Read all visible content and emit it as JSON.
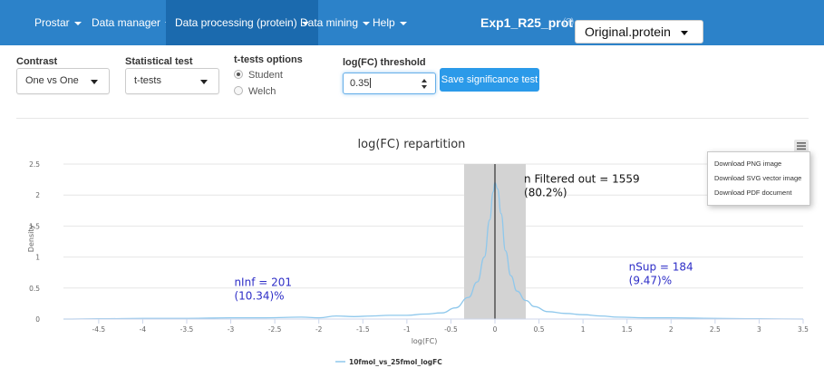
{
  "navbar": {
    "items": [
      {
        "label": "Prostar",
        "has_caret": true
      },
      {
        "label": "Data manager",
        "has_caret": true
      },
      {
        "label": "Data processing (protein)",
        "has_caret": true,
        "active": true
      },
      {
        "label": "Data mining",
        "has_caret": true
      },
      {
        "label": "Help",
        "has_caret": true
      }
    ],
    "experiment_title": "Exp1_R25_prot",
    "help_icon": "question-mark-icon",
    "help_glyph": "(?)",
    "dataset_select": {
      "value": "Original.protein"
    },
    "colors": {
      "background": "#2c82c9",
      "active": "#1b6aae"
    }
  },
  "controls": {
    "contrast": {
      "label": "Contrast",
      "value": "One vs One"
    },
    "statistical_test": {
      "label": "Statistical test",
      "value": "t-tests"
    },
    "ttest_options": {
      "label": "t-tests options",
      "options": [
        {
          "label": "Student",
          "checked": true
        },
        {
          "label": "Welch",
          "checked": false
        }
      ]
    },
    "logfc_threshold": {
      "label": "log(FC) threshold",
      "value": "0.35"
    },
    "save_button": {
      "label": "Save significance test",
      "color": "#2b9ae9"
    }
  },
  "chart_data": {
    "type": "area",
    "title": "log(FC) repartition",
    "xlabel": "log(FC)",
    "ylabel": "Density",
    "xlim": [
      -4.9,
      3.5
    ],
    "ylim": [
      0,
      2.5
    ],
    "x_ticks": [
      -4.5,
      -4,
      -3.5,
      -3,
      -2.5,
      -2,
      -1.5,
      -1,
      -0.5,
      0,
      0.5,
      1,
      1.5,
      2,
      2.5,
      3,
      3.5
    ],
    "y_ticks": [
      0,
      0.5,
      1,
      1.5,
      2,
      2.5
    ],
    "grid": "horizontal",
    "legend_position": "bottom-center",
    "threshold": 0.35,
    "threshold_band": {
      "from": -0.35,
      "to": 0.35,
      "color": "#d3d3d3"
    },
    "zero_line_color": "#333333",
    "series": [
      {
        "name": "10fmol_vs_25fmol_logFC",
        "color": "#8fc8ec",
        "points": [
          [
            -4.9,
            0.0
          ],
          [
            -4.5,
            0.005
          ],
          [
            -4.0,
            0.01
          ],
          [
            -3.5,
            0.01
          ],
          [
            -3.0,
            0.02
          ],
          [
            -2.6,
            0.02
          ],
          [
            -2.2,
            0.03
          ],
          [
            -2.0,
            0.02
          ],
          [
            -1.8,
            0.05
          ],
          [
            -1.6,
            0.04
          ],
          [
            -1.4,
            0.05
          ],
          [
            -1.2,
            0.06
          ],
          [
            -1.0,
            0.06
          ],
          [
            -0.8,
            0.08
          ],
          [
            -0.6,
            0.1
          ],
          [
            -0.45,
            0.18
          ],
          [
            -0.3,
            0.35
          ],
          [
            -0.2,
            0.6
          ],
          [
            -0.12,
            1.0
          ],
          [
            -0.06,
            1.6
          ],
          [
            -0.02,
            2.05
          ],
          [
            0.0,
            2.2
          ],
          [
            0.03,
            2.1
          ],
          [
            0.07,
            1.7
          ],
          [
            0.12,
            1.1
          ],
          [
            0.18,
            0.7
          ],
          [
            0.25,
            0.45
          ],
          [
            0.35,
            0.3
          ],
          [
            0.45,
            0.2
          ],
          [
            0.6,
            0.12
          ],
          [
            0.8,
            0.09
          ],
          [
            1.0,
            0.07
          ],
          [
            1.2,
            0.05
          ],
          [
            1.4,
            0.03
          ],
          [
            1.7,
            0.02
          ],
          [
            2.0,
            0.02
          ],
          [
            2.5,
            0.01
          ],
          [
            3.0,
            0.005
          ],
          [
            3.5,
            0.0
          ]
        ]
      }
    ],
    "annotations": [
      {
        "text_line1": "n Filtered out = 1559",
        "text_line2": "(80.2%)",
        "x": 0.33,
        "y": 2.2,
        "color": "#111111"
      },
      {
        "text_line1": "nInf = 201",
        "text_line2": "(10.34)%",
        "x": -2.96,
        "y": 0.53,
        "color": "#2e2ec7"
      },
      {
        "text_line1": "nSup = 184",
        "text_line2": "(9.47)%",
        "x": 1.52,
        "y": 0.78,
        "color": "#2e2ec7"
      }
    ],
    "export_menu": {
      "icon": "hamburger-menu-icon",
      "items": [
        "Download PNG image",
        "Download SVG vector image",
        "Download PDF document"
      ]
    }
  }
}
